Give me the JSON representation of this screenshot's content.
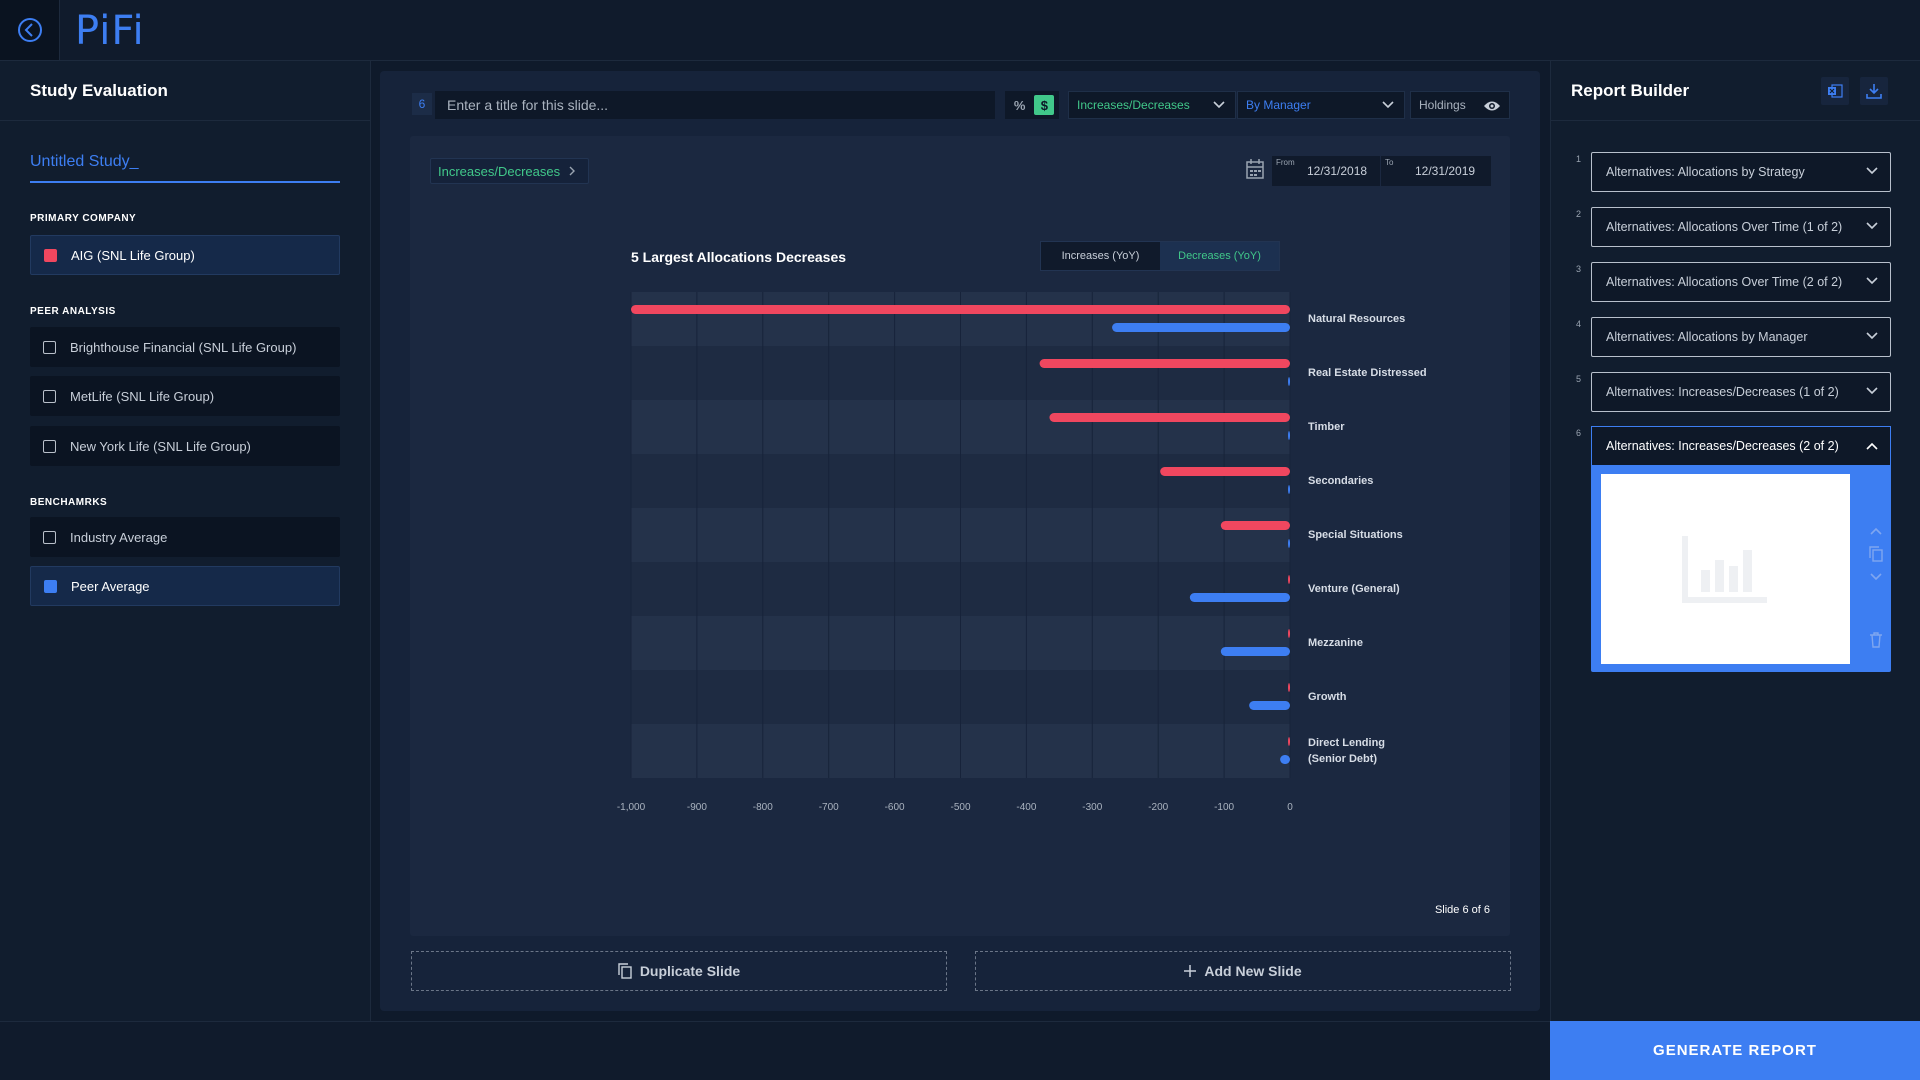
{
  "app": {
    "logo": "PiFi"
  },
  "left": {
    "header": "Study Evaluation",
    "study_name": "Untitled Study_",
    "primary_label": "PRIMARY COMPANY",
    "primary_company": "AIG (SNL Life Group)",
    "peer_label": "PEER ANALYSIS",
    "peers": [
      "Brighthouse Financial (SNL Life Group)",
      "MetLife (SNL Life Group)",
      "New York Life (SNL Life Group)"
    ],
    "bench_label": "BENCHAMRKS",
    "benchmarks": [
      "Industry Average",
      "Peer Average"
    ]
  },
  "toolbar": {
    "slide_number": "6",
    "title_placeholder": "Enter a title for this slide...",
    "percent_label": "%",
    "dollar_label": "$",
    "view_dropdown": "Increases/Decreases",
    "group_dropdown": "By Manager",
    "holdings_label": "Holdings"
  },
  "slide": {
    "breadcrumb": "Increases/Decreases",
    "from_label": "From",
    "from_date": "12/31/2018",
    "to_label": "To",
    "to_date": "12/31/2019",
    "increases_tab": "Increases (YoY)",
    "decreases_tab": "Decreases (YoY)",
    "counter": "Slide 6 of 6"
  },
  "chart_data": {
    "type": "bar",
    "orientation": "horizontal",
    "title": "5 Largest Allocations Decreases",
    "categories": [
      "Natural Resources",
      "Real Estate Distressed",
      "Timber",
      "Secondaries",
      "Special Situations",
      "Venture (General)",
      "Mezzanine",
      "Growth",
      "Direct Lending (Senior Debt)"
    ],
    "series": [
      {
        "color": "#f0475f",
        "values": [
          -1000,
          -380,
          -365,
          -197,
          -105,
          -3,
          -3,
          -3,
          -3
        ]
      },
      {
        "color": "#3d7ef2",
        "values": [
          -270,
          -3,
          -3,
          -3,
          -3,
          -152,
          -105,
          -62,
          -15
        ]
      }
    ],
    "xlim": [
      -1000,
      0
    ],
    "xticks": [
      "-1,000",
      "-900",
      "-800",
      "-700",
      "-600",
      "-500",
      "-400",
      "-300",
      "-200",
      "-100",
      "0"
    ],
    "grid": true
  },
  "actions": {
    "duplicate": "Duplicate Slide",
    "add": "Add New Slide"
  },
  "report": {
    "header": "Report Builder",
    "items": [
      {
        "idx": "1",
        "label": "Alternatives: Allocations by Strategy"
      },
      {
        "idx": "2",
        "label": "Alternatives: Allocations Over Time (1 of 2)"
      },
      {
        "idx": "3",
        "label": "Alternatives: Allocations Over Time (2 of 2)"
      },
      {
        "idx": "4",
        "label": "Alternatives: Allocations by Manager"
      },
      {
        "idx": "5",
        "label": "Alternatives: Increases/Decreases (1 of 2)"
      }
    ],
    "expanded": {
      "idx": "6",
      "label": "Alternatives: Increases/Decreases (2 of 2)"
    },
    "generate": "GENERATE REPORT"
  }
}
